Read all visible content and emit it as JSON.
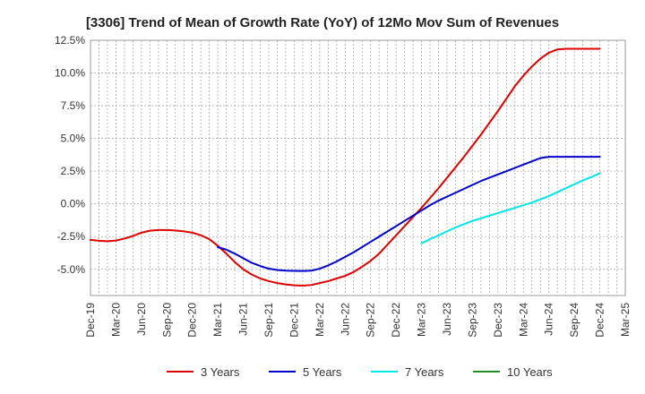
{
  "chart_data": {
    "type": "line",
    "title": "[3306]  Trend of Mean of Growth Rate (YoY) of 12Mo Mov Sum of Revenues",
    "xlabel": "",
    "ylabel": "",
    "ylim": [
      -7.0,
      12.5
    ],
    "y_ticks": [
      12.5,
      10.0,
      7.5,
      5.0,
      2.5,
      0.0,
      -2.5,
      -5.0
    ],
    "y_tick_labels": [
      "12.5%",
      "10.0%",
      "7.5%",
      "5.0%",
      "2.5%",
      "0.0%",
      "-2.5%",
      "-5.0%"
    ],
    "x_tick_labels": [
      "Dec-19",
      "Mar-20",
      "Jun-20",
      "Sep-20",
      "Dec-20",
      "Mar-21",
      "Jun-21",
      "Sep-21",
      "Dec-21",
      "Mar-22",
      "Jun-22",
      "Sep-22",
      "Dec-22",
      "Mar-23",
      "Jun-23",
      "Sep-23",
      "Dec-23",
      "Mar-24",
      "Jun-24",
      "Sep-24",
      "Dec-24",
      "Mar-25"
    ],
    "x_range_months": [
      0,
      63
    ],
    "grid": true,
    "legend_position": "bottom",
    "series": [
      {
        "name": "3 Years",
        "color": "#dd0000",
        "x": [
          0,
          1,
          2,
          3,
          4,
          5,
          6,
          7,
          8,
          9,
          10,
          11,
          12,
          13,
          14,
          15,
          16,
          17,
          18,
          19,
          20,
          21,
          22,
          23,
          24,
          25,
          26,
          27,
          28,
          29,
          30,
          31,
          32,
          33,
          34,
          35,
          36,
          37,
          38,
          39,
          40,
          41,
          42,
          43,
          44,
          45,
          46,
          47,
          48,
          49,
          50,
          51,
          52,
          53,
          54,
          55,
          56,
          57,
          58,
          59,
          60
        ],
        "values": [
          -2.75,
          -2.82,
          -2.85,
          -2.8,
          -2.65,
          -2.45,
          -2.2,
          -2.05,
          -2.0,
          -2.0,
          -2.03,
          -2.1,
          -2.2,
          -2.4,
          -2.7,
          -3.2,
          -3.8,
          -4.45,
          -5.0,
          -5.4,
          -5.7,
          -5.9,
          -6.05,
          -6.15,
          -6.22,
          -6.25,
          -6.2,
          -6.05,
          -5.9,
          -5.7,
          -5.5,
          -5.2,
          -4.8,
          -4.35,
          -3.8,
          -3.1,
          -2.4,
          -1.7,
          -1.0,
          -0.3,
          0.45,
          1.2,
          2.0,
          2.8,
          3.6,
          4.45,
          5.3,
          6.2,
          7.1,
          8.05,
          9.0,
          9.8,
          10.5,
          11.1,
          11.55,
          11.8,
          11.85,
          11.85,
          11.85,
          11.85,
          11.85
        ]
      },
      {
        "name": "5 Years",
        "color": "#0000cc",
        "x": [
          15,
          16,
          17,
          18,
          19,
          20,
          21,
          22,
          23,
          24,
          25,
          26,
          27,
          28,
          29,
          30,
          31,
          32,
          33,
          34,
          35,
          36,
          37,
          38,
          39,
          40,
          41,
          42,
          43,
          44,
          45,
          46,
          47,
          48,
          49,
          50,
          51,
          52,
          53,
          54,
          55,
          56,
          57,
          58,
          59,
          60
        ],
        "values": [
          -3.3,
          -3.5,
          -3.8,
          -4.15,
          -4.5,
          -4.75,
          -4.95,
          -5.05,
          -5.1,
          -5.12,
          -5.13,
          -5.1,
          -4.95,
          -4.7,
          -4.4,
          -4.05,
          -3.7,
          -3.3,
          -2.9,
          -2.5,
          -2.1,
          -1.7,
          -1.3,
          -0.9,
          -0.5,
          -0.1,
          0.25,
          0.55,
          0.85,
          1.15,
          1.45,
          1.75,
          2.0,
          2.25,
          2.5,
          2.75,
          3.0,
          3.25,
          3.5,
          3.6,
          3.6,
          3.6,
          3.6,
          3.6,
          3.6,
          3.6
        ]
      },
      {
        "name": "7 Years",
        "color": "#00e5e5",
        "x": [
          39,
          40,
          41,
          42,
          43,
          44,
          45,
          46,
          47,
          48,
          49,
          50,
          51,
          52,
          53,
          54,
          55,
          56,
          57,
          58,
          59,
          60
        ],
        "values": [
          -3.0,
          -2.7,
          -2.4,
          -2.1,
          -1.8,
          -1.55,
          -1.3,
          -1.1,
          -0.9,
          -0.7,
          -0.5,
          -0.3,
          -0.1,
          0.1,
          0.35,
          0.6,
          0.9,
          1.2,
          1.5,
          1.8,
          2.05,
          2.35
        ]
      },
      {
        "name": "10 Years",
        "color": "#228b22",
        "x": [],
        "values": []
      }
    ]
  }
}
